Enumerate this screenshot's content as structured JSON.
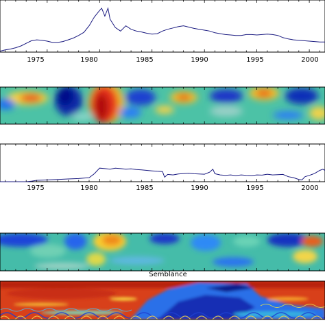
{
  "chart_data": [
    {
      "type": "line",
      "x_tick_labels": [
        "1975",
        "1980",
        "1985",
        "1990",
        "1995",
        "2000"
      ],
      "xlim": [
        1970.5,
        2001.5
      ],
      "series": [
        {
          "x": [
            1970.5,
            1971,
            1971.5,
            1972,
            1972.5,
            1973,
            1973.5,
            1974,
            1974.5,
            1975,
            1975.5,
            1976,
            1976.5,
            1977,
            1977.5,
            1978,
            1978.5,
            1979,
            1979.5,
            1980,
            1980.2,
            1980.5,
            1980.8,
            1981,
            1981.5,
            1982,
            1982.5,
            1983,
            1983.5,
            1984,
            1984.5,
            1985,
            1985.5,
            1986,
            1986.5,
            1987,
            1987.5,
            1988,
            1988.5,
            1989,
            1989.5,
            1990,
            1990.5,
            1991,
            1991.5,
            1992,
            1992.5,
            1993,
            1993.5,
            1994,
            1994.5,
            1995,
            1995.5,
            1996,
            1996.5,
            1997,
            1997.5,
            1998,
            1998.5,
            1999,
            1999.5,
            2000,
            2000.5,
            2001,
            2001.5
          ],
          "y": [
            0.02,
            0.05,
            0.07,
            0.1,
            0.14,
            0.2,
            0.26,
            0.28,
            0.27,
            0.25,
            0.22,
            0.22,
            0.24,
            0.28,
            0.32,
            0.38,
            0.45,
            0.6,
            0.8,
            0.95,
            1.0,
            0.82,
            1.0,
            0.75,
            0.56,
            0.48,
            0.6,
            0.52,
            0.48,
            0.46,
            0.43,
            0.41,
            0.42,
            0.48,
            0.52,
            0.55,
            0.58,
            0.6,
            0.57,
            0.54,
            0.52,
            0.5,
            0.48,
            0.44,
            0.42,
            0.4,
            0.39,
            0.38,
            0.38,
            0.4,
            0.4,
            0.39,
            0.4,
            0.41,
            0.4,
            0.38,
            0.33,
            0.3,
            0.28,
            0.27,
            0.26,
            0.25,
            0.24,
            0.23,
            0.23
          ]
        }
      ]
    },
    {
      "type": "heatmap",
      "xlim": [
        1970.5,
        2001.5
      ],
      "colormap": "jet"
    },
    {
      "type": "line",
      "x_tick_labels": [
        "1975",
        "1980",
        "1985",
        "1990",
        "1995",
        "2000"
      ],
      "xlim": [
        1970.5,
        2001.5
      ],
      "series": [
        {
          "x": [
            1970.5,
            1971,
            1972,
            1973,
            1973.5,
            1974,
            1975,
            1976,
            1977,
            1978,
            1979,
            1979.5,
            1980,
            1980.5,
            1981,
            1981.5,
            1982,
            1982.5,
            1983,
            1983.5,
            1984,
            1984.5,
            1985,
            1985.5,
            1986,
            1986.2,
            1986.5,
            1987,
            1987.5,
            1988,
            1988.5,
            1989,
            1989.5,
            1990,
            1990.5,
            1990.8,
            1991,
            1991.5,
            1992,
            1992.5,
            1993,
            1993.5,
            1994,
            1994.5,
            1995,
            1995.5,
            1996,
            1996.5,
            1997,
            1997.5,
            1998,
            1998.5,
            1999,
            1999.3,
            1999.6,
            2000,
            2000.5,
            2001,
            2001.3,
            2001.5
          ],
          "y": [
            0.0,
            0.0,
            0.0,
            0.0,
            0.02,
            0.06,
            0.08,
            0.1,
            0.12,
            0.14,
            0.18,
            0.35,
            0.6,
            0.58,
            0.55,
            0.6,
            0.58,
            0.55,
            0.57,
            0.54,
            0.52,
            0.5,
            0.48,
            0.46,
            0.45,
            0.2,
            0.32,
            0.3,
            0.34,
            0.36,
            0.38,
            0.35,
            0.34,
            0.33,
            0.42,
            0.55,
            0.35,
            0.3,
            0.28,
            0.3,
            0.27,
            0.3,
            0.28,
            0.27,
            0.3,
            0.29,
            0.33,
            0.3,
            0.31,
            0.32,
            0.22,
            0.18,
            0.1,
            0.08,
            0.22,
            0.28,
            0.36,
            0.5,
            0.55,
            0.5
          ]
        }
      ]
    },
    {
      "type": "heatmap",
      "xlim": [
        1970.5,
        2001.5
      ],
      "colormap": "jet"
    },
    {
      "type": "heatmap",
      "title": "Semblance",
      "xlim": [
        1970.5,
        2001.5
      ],
      "colormap": "jet"
    }
  ]
}
